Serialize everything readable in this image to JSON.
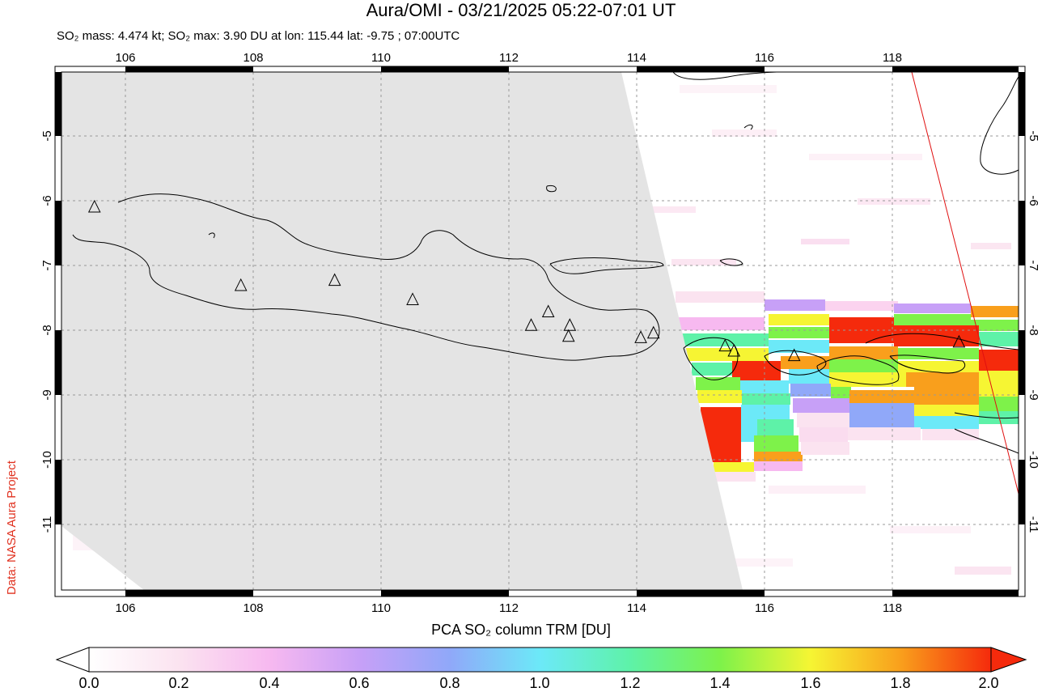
{
  "header": {
    "title": "Aura/OMI - 03/21/2025 05:22-07:01 UT",
    "subtitle": "SO₂ mass: 4.474 kt; SO₂ max: 3.90 DU at lon: 115.44 lat: -9.75 ; 07:00UTC"
  },
  "credit": "Data: NASA Aura Project",
  "map": {
    "lon_range": [
      104.9,
      120.0
    ],
    "lat_range": [
      -12.05,
      -4.0
    ],
    "lon_ticks": [
      "106",
      "108",
      "110",
      "112",
      "114",
      "116",
      "118"
    ],
    "lat_ticks": [
      "-5",
      "-6",
      "-7",
      "-8",
      "-9",
      "-10",
      "-11"
    ],
    "volcanoes": [
      {
        "lon": 105.42,
        "lat": -6.1
      },
      {
        "lon": 107.73,
        "lat": -7.32
      },
      {
        "lon": 109.21,
        "lat": -7.24
      },
      {
        "lon": 110.44,
        "lat": -7.54
      },
      {
        "lon": 112.31,
        "lat": -7.94
      },
      {
        "lon": 112.58,
        "lat": -7.73
      },
      {
        "lon": 112.92,
        "lat": -7.94
      },
      {
        "lon": 112.9,
        "lat": -8.11
      },
      {
        "lon": 114.04,
        "lat": -8.13
      },
      {
        "lon": 114.24,
        "lat": -8.06
      },
      {
        "lon": 115.37,
        "lat": -8.26
      },
      {
        "lon": 115.51,
        "lat": -8.34
      },
      {
        "lon": 116.46,
        "lat": -8.41
      },
      {
        "lon": 119.06,
        "lat": -8.2
      }
    ]
  },
  "colorbar": {
    "title": "PCA SO₂ column TRM [DU]",
    "labels": [
      "0.0",
      "0.2",
      "0.4",
      "0.6",
      "0.8",
      "1.0",
      "1.2",
      "1.4",
      "1.6",
      "1.8",
      "2.0"
    ],
    "colors": [
      "#ffffff",
      "#fbe3f0",
      "#f7b9f0",
      "#c7a0f7",
      "#90a8f9",
      "#6ce9f8",
      "#5ef2a8",
      "#7ef24a",
      "#f6f533",
      "#f99f1c",
      "#f52a0c"
    ]
  }
}
